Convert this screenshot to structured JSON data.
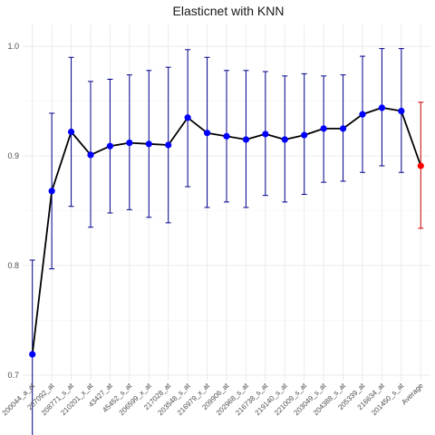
{
  "chart_data": {
    "type": "line",
    "title": "Elasticnet with KNN",
    "xlabel": "",
    "ylabel": "",
    "ylim": [
      0.695,
      1.02
    ],
    "yticks": [
      0.7,
      0.8,
      0.9,
      1.0
    ],
    "ytick_labels": [
      "0.7",
      "0.8",
      "0.9",
      "1.0"
    ],
    "grid": true,
    "categories": [
      "200044_a_at",
      "207092_at",
      "208771_s_at",
      "210201_x_at",
      "43427_at",
      "45452_s_at",
      "206599_x_at",
      "217028_at",
      "203548_s_at",
      "216979_x_at",
      "209906_at",
      "202968_s_at",
      "216738_s_at",
      "219140_s_at",
      "221009_s_at",
      "203049_s_at",
      "204388_s_at",
      "205339_at",
      "216634_at",
      "201450_s_at",
      "Average"
    ],
    "series": [
      {
        "values": [
          0.719,
          0.868,
          0.922,
          0.901,
          0.909,
          0.912,
          0.911,
          0.91,
          0.935,
          0.921,
          0.918,
          0.915,
          0.92,
          0.915,
          0.919,
          0.925,
          0.925,
          0.938,
          0.944,
          0.941,
          0.891
        ],
        "lower": [
          0.63,
          0.797,
          0.854,
          0.835,
          0.848,
          0.851,
          0.844,
          0.839,
          0.872,
          0.853,
          0.858,
          0.853,
          0.864,
          0.858,
          0.865,
          0.876,
          0.877,
          0.885,
          0.891,
          0.885,
          0.834
        ],
        "upper": [
          0.805,
          0.939,
          0.99,
          0.968,
          0.97,
          0.974,
          0.978,
          0.981,
          0.997,
          0.99,
          0.978,
          0.978,
          0.977,
          0.973,
          0.975,
          0.973,
          0.974,
          0.991,
          0.998,
          0.998,
          0.949
        ]
      }
    ],
    "colors": {
      "line": "#000000",
      "point": "#0000ff",
      "errorbar": "#00008b",
      "average_point": "#ff0000",
      "average_errorbar": "#cc0000",
      "grid": "#ebebeb",
      "text": "#4d4d4d"
    }
  }
}
